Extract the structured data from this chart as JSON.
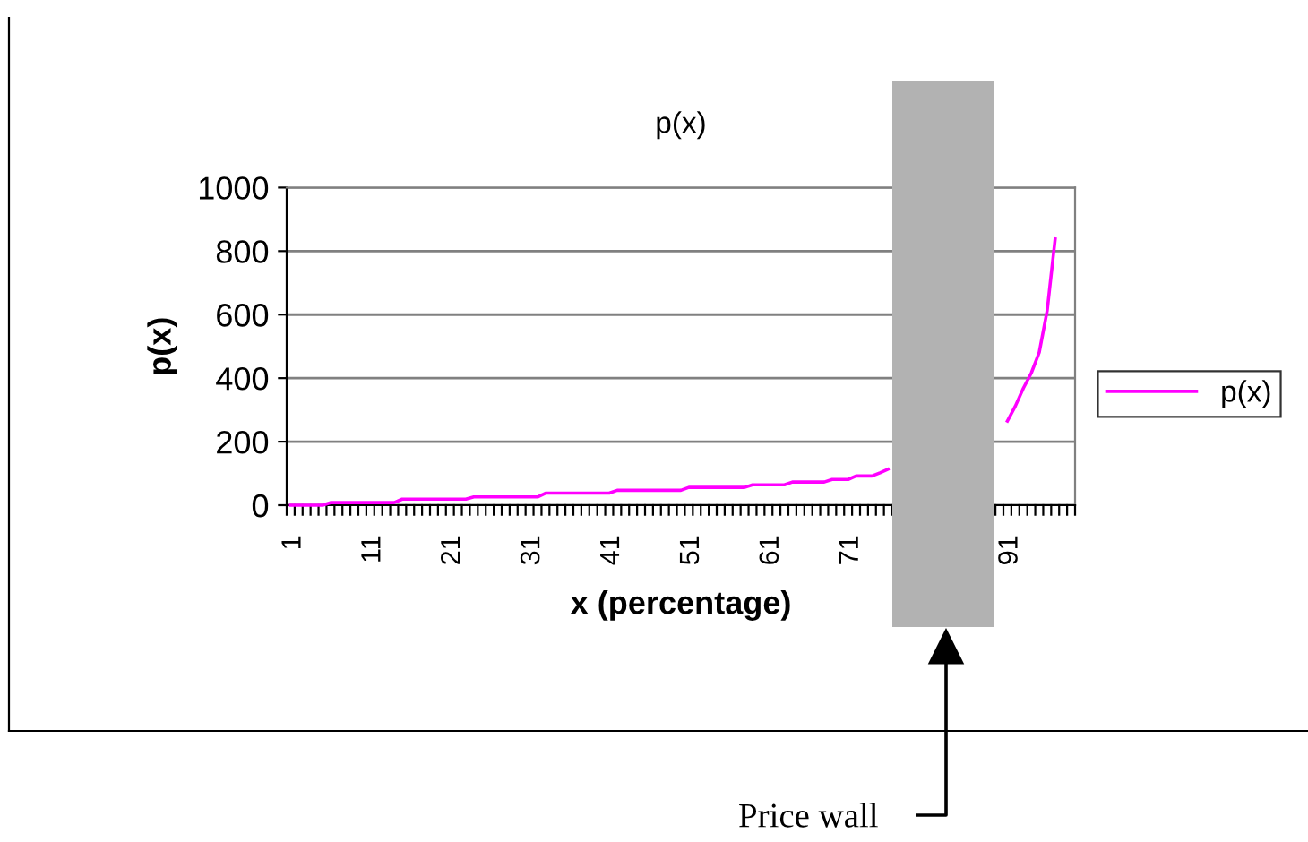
{
  "chart_data": {
    "type": "line",
    "title": "p(x)",
    "xlabel": "x (percentage)",
    "ylabel": "p(x)",
    "categories": [
      "1",
      null,
      null,
      null,
      null,
      null,
      null,
      null,
      null,
      null,
      "11",
      null,
      null,
      null,
      null,
      null,
      null,
      null,
      null,
      null,
      "21",
      null,
      null,
      null,
      null,
      null,
      null,
      null,
      null,
      null,
      "31",
      null,
      null,
      null,
      null,
      null,
      null,
      null,
      null,
      null,
      "41",
      null,
      null,
      null,
      null,
      null,
      null,
      null,
      null,
      null,
      "51",
      null,
      null,
      null,
      null,
      null,
      null,
      null,
      null,
      null,
      "61",
      null,
      null,
      null,
      null,
      null,
      null,
      null,
      null,
      null,
      "71",
      null,
      null,
      null,
      null,
      null,
      null,
      null,
      null,
      null,
      null,
      null,
      null,
      null,
      null,
      null,
      null,
      null,
      null,
      null,
      "91",
      null,
      null,
      null,
      null,
      null,
      null,
      null,
      null
    ],
    "series": [
      {
        "name": "p(x)",
        "color": "#ff00ff",
        "values": [
          0,
          0,
          0,
          0,
          0,
          8,
          8,
          8,
          8,
          8,
          8,
          8,
          8,
          8,
          19,
          19,
          19,
          19,
          19,
          19,
          19,
          19,
          19,
          26,
          26,
          26,
          26,
          26,
          26,
          26,
          26,
          26,
          38,
          38,
          38,
          38,
          38,
          38,
          38,
          38,
          38,
          47,
          47,
          47,
          47,
          47,
          47,
          47,
          47,
          47,
          56,
          56,
          56,
          56,
          56,
          56,
          56,
          56,
          64,
          64,
          64,
          64,
          64,
          73,
          73,
          73,
          73,
          73,
          81,
          81,
          81,
          92,
          92,
          92,
          102,
          113,
          null,
          null,
          null,
          null,
          null,
          null,
          null,
          null,
          null,
          null,
          null,
          null,
          null,
          null,
          265,
          312,
          368,
          416,
          481,
          613,
          838,
          null,
          null
        ]
      }
    ],
    "ylim": [
      0,
      1000
    ],
    "yticks": [
      0,
      200,
      400,
      600,
      800,
      1000
    ],
    "grid": "y",
    "legend": "right",
    "marker": "none",
    "line_style": "solid",
    "annotations": [
      "Price wall"
    ]
  }
}
